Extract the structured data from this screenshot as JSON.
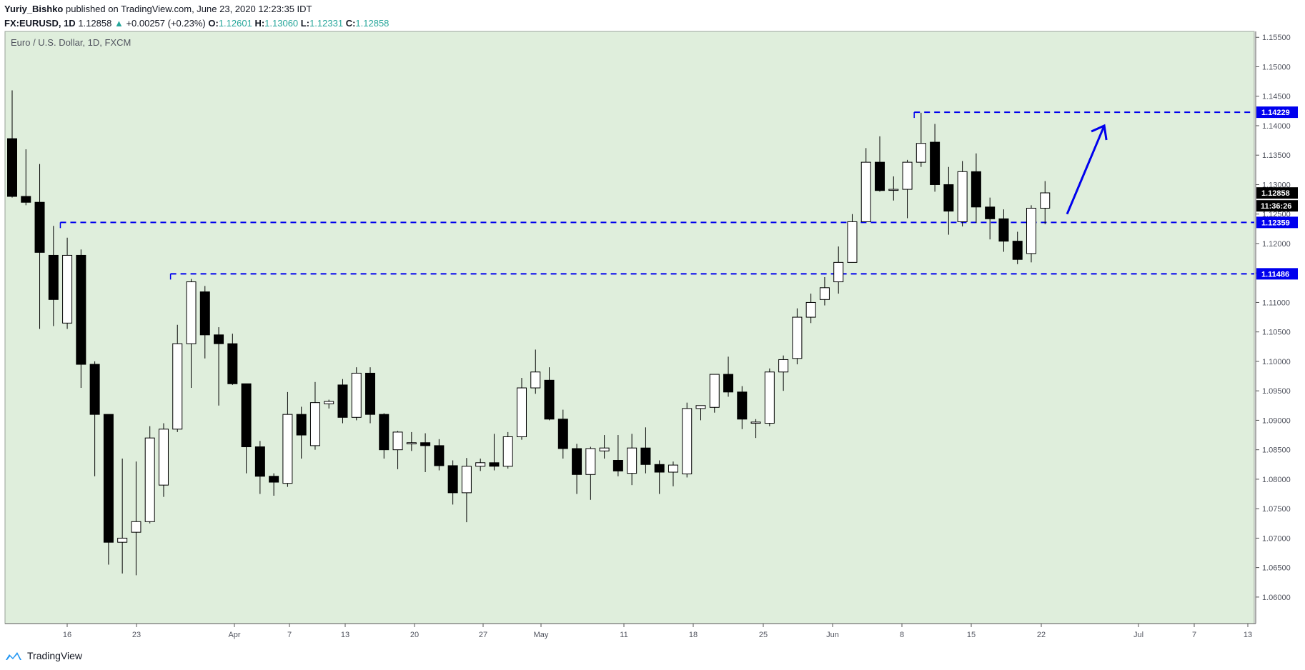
{
  "header": {
    "author": "Yuriy_Bishko",
    "published_text": " published on TradingView.com, June 23, 2020 12:23:35 IDT",
    "symbol": "FX:EURUSD, 1D",
    "last": "1.12858",
    "change": "+0.00257 (+0.23%)",
    "o_label": "O:",
    "o_value": "1.12601",
    "h_label": "H:",
    "h_value": "1.13060",
    "l_label": "L:",
    "l_value": "1.12331",
    "c_label": "C:",
    "c_value": "1.12858"
  },
  "footer": {
    "brand": "TradingView"
  },
  "colors": {
    "background": "#dfeedc",
    "candle_up": "#ffffff",
    "candle_down": "#000000",
    "level_line": "#0000ee",
    "change_up": "#26a69a"
  },
  "chart_data": {
    "type": "candlestick",
    "title": "Euro / U.S. Dollar, 1D, FXCM",
    "ylim": [
      1.0555,
      1.156
    ],
    "y_ticks": [
      "1.15500",
      "1.15000",
      "1.14500",
      "1.14000",
      "1.13500",
      "1.13000",
      "1.12500",
      "1.12000",
      "1.11500",
      "1.11000",
      "1.10500",
      "1.10000",
      "1.09500",
      "1.09000",
      "1.08500",
      "1.08000",
      "1.07500",
      "1.07000",
      "1.06500",
      "1.06000"
    ],
    "x_ticks": [
      "16",
      "23",
      "Apr",
      "7",
      "13",
      "20",
      "27",
      "May",
      "11",
      "18",
      "25",
      "Jun",
      "8",
      "15",
      "22",
      "Jul",
      "7",
      "13"
    ],
    "candles": [
      {
        "o": 1.1378,
        "h": 1.146,
        "l": 1.1278,
        "c": 1.128
      },
      {
        "o": 1.128,
        "h": 1.136,
        "l": 1.1265,
        "c": 1.127
      },
      {
        "o": 1.127,
        "h": 1.1335,
        "l": 1.1055,
        "c": 1.1185
      },
      {
        "o": 1.118,
        "h": 1.123,
        "l": 1.106,
        "c": 1.1105
      },
      {
        "o": 1.1065,
        "h": 1.121,
        "l": 1.1055,
        "c": 1.118
      },
      {
        "o": 1.118,
        "h": 1.119,
        "l": 1.0955,
        "c": 1.0995
      },
      {
        "o": 1.0995,
        "h": 1.1,
        "l": 1.0805,
        "c": 1.091
      },
      {
        "o": 1.091,
        "h": 1.091,
        "l": 1.0655,
        "c": 1.0693
      },
      {
        "o": 1.0693,
        "h": 1.0835,
        "l": 1.064,
        "c": 1.07
      },
      {
        "o": 1.071,
        "h": 1.083,
        "l": 1.0637,
        "c": 1.0728
      },
      {
        "o": 1.0728,
        "h": 1.089,
        "l": 1.0725,
        "c": 1.087
      },
      {
        "o": 1.079,
        "h": 1.0895,
        "l": 1.077,
        "c": 1.0885
      },
      {
        "o": 1.0885,
        "h": 1.1062,
        "l": 1.088,
        "c": 1.103
      },
      {
        "o": 1.103,
        "h": 1.114,
        "l": 1.0955,
        "c": 1.1135
      },
      {
        "o": 1.1118,
        "h": 1.1128,
        "l": 1.1005,
        "c": 1.1045
      },
      {
        "o": 1.1045,
        "h": 1.1058,
        "l": 1.0925,
        "c": 1.103
      },
      {
        "o": 1.103,
        "h": 1.1047,
        "l": 1.096,
        "c": 1.0962
      },
      {
        "o": 1.0962,
        "h": 1.0962,
        "l": 1.081,
        "c": 1.0855
      },
      {
        "o": 1.0855,
        "h": 1.0865,
        "l": 1.0775,
        "c": 1.0805
      },
      {
        "o": 1.0805,
        "h": 1.081,
        "l": 1.0772,
        "c": 1.0795
      },
      {
        "o": 1.0793,
        "h": 1.0948,
        "l": 1.0787,
        "c": 1.091
      },
      {
        "o": 1.091,
        "h": 1.0923,
        "l": 1.0835,
        "c": 1.0875
      },
      {
        "o": 1.0857,
        "h": 1.0965,
        "l": 1.085,
        "c": 1.093
      },
      {
        "o": 1.0928,
        "h": 1.0935,
        "l": 1.092,
        "c": 1.0932
      },
      {
        "o": 1.096,
        "h": 1.097,
        "l": 1.0895,
        "c": 1.0905
      },
      {
        "o": 1.0905,
        "h": 1.099,
        "l": 1.09,
        "c": 1.098
      },
      {
        "o": 1.098,
        "h": 1.099,
        "l": 1.0895,
        "c": 1.091
      },
      {
        "o": 1.091,
        "h": 1.0912,
        "l": 1.0835,
        "c": 1.085
      },
      {
        "o": 1.085,
        "h": 1.0882,
        "l": 1.0817,
        "c": 1.088
      },
      {
        "o": 1.086,
        "h": 1.088,
        "l": 1.0848,
        "c": 1.0862
      },
      {
        "o": 1.0862,
        "h": 1.0878,
        "l": 1.0812,
        "c": 1.0857
      },
      {
        "o": 1.0857,
        "h": 1.0868,
        "l": 1.0815,
        "c": 1.0823
      },
      {
        "o": 1.0823,
        "h": 1.0832,
        "l": 1.0757,
        "c": 1.0777
      },
      {
        "o": 1.0777,
        "h": 1.0836,
        "l": 1.0727,
        "c": 1.0822
      },
      {
        "o": 1.0822,
        "h": 1.0835,
        "l": 1.0814,
        "c": 1.0828
      },
      {
        "o": 1.0828,
        "h": 1.0877,
        "l": 1.0815,
        "c": 1.0822
      },
      {
        "o": 1.0822,
        "h": 1.088,
        "l": 1.0818,
        "c": 1.0872
      },
      {
        "o": 1.0872,
        "h": 1.0972,
        "l": 1.0867,
        "c": 1.0955
      },
      {
        "o": 1.0955,
        "h": 1.102,
        "l": 1.0945,
        "c": 1.0982
      },
      {
        "o": 1.0968,
        "h": 1.099,
        "l": 1.09,
        "c": 1.0902
      },
      {
        "o": 1.0902,
        "h": 1.0918,
        "l": 1.0835,
        "c": 1.0852
      },
      {
        "o": 1.0852,
        "h": 1.086,
        "l": 1.0775,
        "c": 1.0808
      },
      {
        "o": 1.0808,
        "h": 1.0855,
        "l": 1.0765,
        "c": 1.0852
      },
      {
        "o": 1.0848,
        "h": 1.0875,
        "l": 1.0835,
        "c": 1.0853
      },
      {
        "o": 1.0832,
        "h": 1.0875,
        "l": 1.0805,
        "c": 1.0814
      },
      {
        "o": 1.081,
        "h": 1.0877,
        "l": 1.079,
        "c": 1.0853
      },
      {
        "o": 1.0853,
        "h": 1.0888,
        "l": 1.081,
        "c": 1.0825
      },
      {
        "o": 1.0825,
        "h": 1.0832,
        "l": 1.0775,
        "c": 1.0812
      },
      {
        "o": 1.0812,
        "h": 1.083,
        "l": 1.0788,
        "c": 1.0824
      },
      {
        "o": 1.0809,
        "h": 1.093,
        "l": 1.0803,
        "c": 1.092
      },
      {
        "o": 1.092,
        "h": 1.0925,
        "l": 1.09,
        "c": 1.0925
      },
      {
        "o": 1.0922,
        "h": 1.0978,
        "l": 1.0913,
        "c": 1.0978
      },
      {
        "o": 1.0978,
        "h": 1.1008,
        "l": 1.094,
        "c": 1.0948
      },
      {
        "o": 1.0948,
        "h": 1.0958,
        "l": 1.0885,
        "c": 1.0902
      },
      {
        "o": 1.0895,
        "h": 1.0902,
        "l": 1.087,
        "c": 1.0897
      },
      {
        "o": 1.0895,
        "h": 1.0988,
        "l": 1.089,
        "c": 1.0982
      },
      {
        "o": 1.0982,
        "h": 1.101,
        "l": 1.095,
        "c": 1.1003
      },
      {
        "o": 1.1005,
        "h": 1.109,
        "l": 1.0995,
        "c": 1.1075
      },
      {
        "o": 1.1075,
        "h": 1.1115,
        "l": 1.1065,
        "c": 1.11
      },
      {
        "o": 1.1105,
        "h": 1.1143,
        "l": 1.1095,
        "c": 1.1125
      },
      {
        "o": 1.1135,
        "h": 1.1195,
        "l": 1.1115,
        "c": 1.1168
      },
      {
        "o": 1.1168,
        "h": 1.125,
        "l": 1.1168,
        "c": 1.1237
      },
      {
        "o": 1.1237,
        "h": 1.1362,
        "l": 1.1237,
        "c": 1.1338
      },
      {
        "o": 1.1338,
        "h": 1.1382,
        "l": 1.1288,
        "c": 1.129
      },
      {
        "o": 1.1292,
        "h": 1.1314,
        "l": 1.1273,
        "c": 1.1292
      },
      {
        "o": 1.1292,
        "h": 1.1342,
        "l": 1.1243,
        "c": 1.1338
      },
      {
        "o": 1.1338,
        "h": 1.1422,
        "l": 1.133,
        "c": 1.137
      },
      {
        "o": 1.1372,
        "h": 1.1403,
        "l": 1.1288,
        "c": 1.13
      },
      {
        "o": 1.13,
        "h": 1.133,
        "l": 1.1215,
        "c": 1.1255
      },
      {
        "o": 1.1237,
        "h": 1.134,
        "l": 1.1229,
        "c": 1.1322
      },
      {
        "o": 1.1322,
        "h": 1.1353,
        "l": 1.1235,
        "c": 1.1262
      },
      {
        "o": 1.1262,
        "h": 1.1278,
        "l": 1.1207,
        "c": 1.1242
      },
      {
        "o": 1.1242,
        "h": 1.1258,
        "l": 1.1186,
        "c": 1.1204
      },
      {
        "o": 1.1204,
        "h": 1.122,
        "l": 1.1165,
        "c": 1.1173
      },
      {
        "o": 1.1183,
        "h": 1.1265,
        "l": 1.1168,
        "c": 1.126
      },
      {
        "o": 1.126,
        "h": 1.1306,
        "l": 1.1233,
        "c": 1.1286
      }
    ],
    "levels": [
      "1.14229",
      "1.12359",
      "1.11486"
    ],
    "last_price_label": "1.12858",
    "countdown_label": "11:36:26"
  }
}
